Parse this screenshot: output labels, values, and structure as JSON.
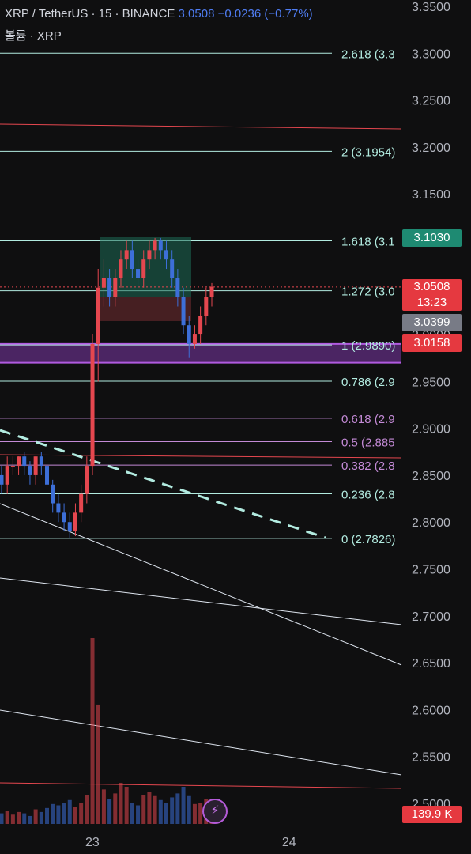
{
  "header": {
    "symbol": "XRP / TetherUS · 15 · BINANCE",
    "price": "3.0508",
    "change": "−0.0236 (−0.77%)",
    "volume_label": "볼륨 · XRP"
  },
  "colors": {
    "background": "#0f0f10",
    "up": "#e5474f",
    "down": "#3d6fd8",
    "fib_teal": "#b2ebe0",
    "fib_violet": "#c38ad6",
    "trend_red": "#e5474f",
    "zone_purple": "#5a2a78",
    "dashed": "#b2ebe0"
  },
  "price_tags": {
    "current": "3.0508",
    "countdown": "13:23",
    "green": "3.1030",
    "gray": "3.0399",
    "red": "3.0158",
    "volume": "139.9 K"
  },
  "chart_data": {
    "type": "candlestick",
    "y_axis_ticks": [
      "3.3500",
      "3.3000",
      "3.2500",
      "3.2000",
      "3.1500",
      "3.1000",
      "3.0500",
      "3.0000",
      "2.9500",
      "2.9000",
      "2.8500",
      "2.8000",
      "2.7500",
      "2.7000",
      "2.6500",
      "2.6000",
      "2.5500",
      "2.5000"
    ],
    "ylim": [
      2.5,
      3.35
    ],
    "x_axis_ticks": [
      {
        "label": "23",
        "pos": 0.23
      },
      {
        "label": "24",
        "pos": 0.72
      }
    ],
    "fib_levels": [
      {
        "ratio": "2.618",
        "label": "2.618 (3.3",
        "price": 3.3,
        "color": "teal"
      },
      {
        "ratio": "2",
        "label": "2 (3.1954)",
        "price": 3.1954,
        "color": "teal"
      },
      {
        "ratio": "1.618",
        "label": "1.618 (3.1",
        "price": 3.1,
        "color": "teal"
      },
      {
        "ratio": "1.272",
        "label": "1.272 (3.0",
        "price": 3.0467,
        "color": "teal"
      },
      {
        "ratio": "1",
        "label": "1 (2.9890)",
        "price": 2.989,
        "color": "teal"
      },
      {
        "ratio": "0.786",
        "label": "0.786 (2.9",
        "price": 2.9503,
        "color": "teal"
      },
      {
        "ratio": "0.618",
        "label": "0.618 (2.9",
        "price": 2.9108,
        "color": "violet"
      },
      {
        "ratio": "0.5",
        "label": "0.5 (2.885",
        "price": 2.8858,
        "color": "violet"
      },
      {
        "ratio": "0.382",
        "label": "0.382 (2.8",
        "price": 2.8608,
        "color": "violet"
      },
      {
        "ratio": "0.236",
        "label": "0.236 (2.8",
        "price": 2.8301,
        "color": "teal"
      },
      {
        "ratio": "0",
        "label": "0 (2.7826)",
        "price": 2.7826,
        "color": "teal"
      }
    ],
    "candles": [
      [
        2.85,
        2.86,
        2.83,
        2.84
      ],
      [
        2.84,
        2.87,
        2.83,
        2.86
      ],
      [
        2.86,
        2.87,
        2.85,
        2.86
      ],
      [
        2.86,
        2.87,
        2.85,
        2.87
      ],
      [
        2.87,
        2.875,
        2.85,
        2.86
      ],
      [
        2.86,
        2.865,
        2.84,
        2.85
      ],
      [
        2.85,
        2.87,
        2.84,
        2.87
      ],
      [
        2.87,
        2.875,
        2.85,
        2.86
      ],
      [
        2.86,
        2.865,
        2.83,
        2.84
      ],
      [
        2.84,
        2.845,
        2.81,
        2.82
      ],
      [
        2.82,
        2.83,
        2.8,
        2.81
      ],
      [
        2.81,
        2.82,
        2.79,
        2.8
      ],
      [
        2.8,
        2.81,
        2.783,
        2.79
      ],
      [
        2.79,
        2.82,
        2.785,
        2.81
      ],
      [
        2.81,
        2.84,
        2.8,
        2.83
      ],
      [
        2.83,
        2.87,
        2.82,
        2.86
      ],
      [
        2.86,
        3.0,
        2.85,
        2.99
      ],
      [
        2.99,
        3.07,
        2.95,
        3.05
      ],
      [
        3.05,
        3.08,
        3.03,
        3.06
      ],
      [
        3.06,
        3.07,
        3.03,
        3.04
      ],
      [
        3.04,
        3.07,
        3.03,
        3.06
      ],
      [
        3.06,
        3.09,
        3.05,
        3.08
      ],
      [
        3.08,
        3.1,
        3.07,
        3.09
      ],
      [
        3.09,
        3.1,
        3.06,
        3.07
      ],
      [
        3.07,
        3.08,
        3.05,
        3.06
      ],
      [
        3.06,
        3.09,
        3.05,
        3.08
      ],
      [
        3.08,
        3.1,
        3.07,
        3.09
      ],
      [
        3.09,
        3.103,
        3.08,
        3.1
      ],
      [
        3.1,
        3.103,
        3.08,
        3.09
      ],
      [
        3.09,
        3.1,
        3.07,
        3.08
      ],
      [
        3.08,
        3.09,
        3.05,
        3.06
      ],
      [
        3.06,
        3.07,
        3.03,
        3.04
      ],
      [
        3.04,
        3.05,
        3.0,
        3.01
      ],
      [
        3.01,
        3.02,
        2.975,
        2.99
      ],
      [
        2.99,
        3.01,
        2.985,
        3.0
      ],
      [
        3.0,
        3.03,
        2.99,
        3.02
      ],
      [
        3.02,
        3.05,
        3.01,
        3.04
      ],
      [
        3.04,
        3.055,
        3.03,
        3.051
      ]
    ],
    "volume": [
      0.8,
      1.0,
      0.7,
      0.9,
      0.8,
      0.6,
      1.1,
      0.9,
      1.2,
      1.5,
      1.4,
      1.6,
      1.8,
      1.3,
      1.6,
      2.2,
      14.0,
      9.0,
      2.6,
      1.9,
      2.3,
      3.1,
      2.8,
      1.6,
      1.4,
      2.2,
      2.4,
      2.1,
      1.8,
      1.6,
      2.0,
      2.3,
      2.8,
      2.1,
      1.5,
      1.6,
      1.9,
      1.3
    ]
  }
}
